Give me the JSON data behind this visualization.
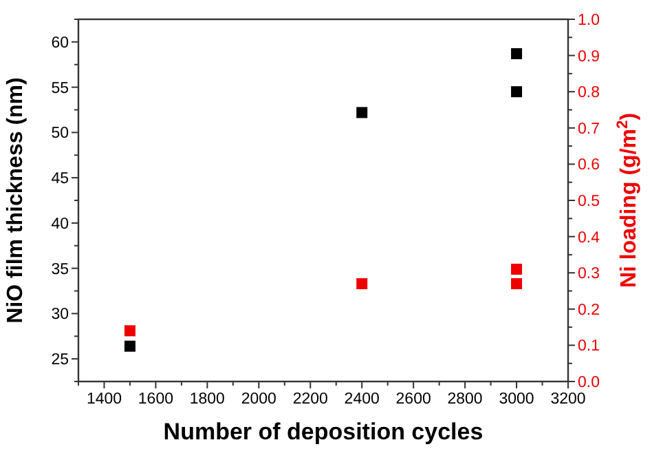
{
  "chart_data": {
    "type": "scatter",
    "xlabel": "Number of deposition cycles",
    "ylabel": "NiO film thickness (nm)",
    "y2label": "Ni loading (g/m$^{2}$)",
    "marker": "square",
    "grid": false,
    "xlim": [
      1300,
      3200
    ],
    "xticks": [
      {
        "value": 1300,
        "label": null
      },
      1400,
      {
        "value": 1500,
        "label": null
      },
      1600,
      {
        "value": 1700,
        "label": null
      },
      1800,
      {
        "value": 1900,
        "label": null
      },
      2000,
      {
        "value": 2100,
        "label": null
      },
      2200,
      {
        "value": 2300,
        "label": null
      },
      2400,
      {
        "value": 2500,
        "label": null
      },
      2600,
      {
        "value": 2700,
        "label": null
      },
      2800,
      {
        "value": 2900,
        "label": null
      },
      3000,
      {
        "value": 3100,
        "label": null
      },
      3200
    ],
    "ylim": [
      22.5,
      62.5
    ],
    "yticks": [
      {
        "value": 22.5,
        "label": null
      },
      25,
      {
        "value": 27.5,
        "label": null
      },
      30,
      {
        "value": 32.5,
        "label": null
      },
      35,
      {
        "value": 37.5,
        "label": null
      },
      40,
      {
        "value": 42.5,
        "label": null
      },
      45,
      {
        "value": 47.5,
        "label": null
      },
      50,
      {
        "value": 52.5,
        "label": null
      },
      55,
      {
        "value": 57.5,
        "label": null
      },
      60,
      {
        "value": 62.5,
        "label": null
      }
    ],
    "y2lim": [
      0,
      1
    ],
    "y2ticks": [
      {
        "value": 0,
        "label": "0.0"
      },
      {
        "value": 0.05,
        "label": null
      },
      0.1,
      {
        "value": 0.15,
        "label": null
      },
      0.2,
      {
        "value": 0.25,
        "label": null
      },
      0.3,
      {
        "value": 0.35,
        "label": null
      },
      0.4,
      {
        "value": 0.45,
        "label": null
      },
      0.5,
      {
        "value": 0.55,
        "label": null
      },
      0.6,
      {
        "value": 0.65,
        "label": null
      },
      0.7,
      {
        "value": 0.75,
        "label": null
      },
      0.8,
      {
        "value": 0.85,
        "label": null
      },
      0.9,
      {
        "value": 0.95,
        "label": null
      },
      {
        "value": 1,
        "label": "1.0"
      }
    ],
    "series": [
      {
        "color": "#000000",
        "x": [
          1500,
          2400,
          3000,
          3000
        ],
        "values": [
          26.4,
          52.2,
          58.7,
          54.5
        ]
      },
      {
        "color": "#ee0000",
        "axis": "y2",
        "x": [
          1500,
          2400,
          3000,
          3000
        ],
        "values": [
          0.14,
          0.27,
          0.31,
          0.27
        ]
      }
    ]
  }
}
